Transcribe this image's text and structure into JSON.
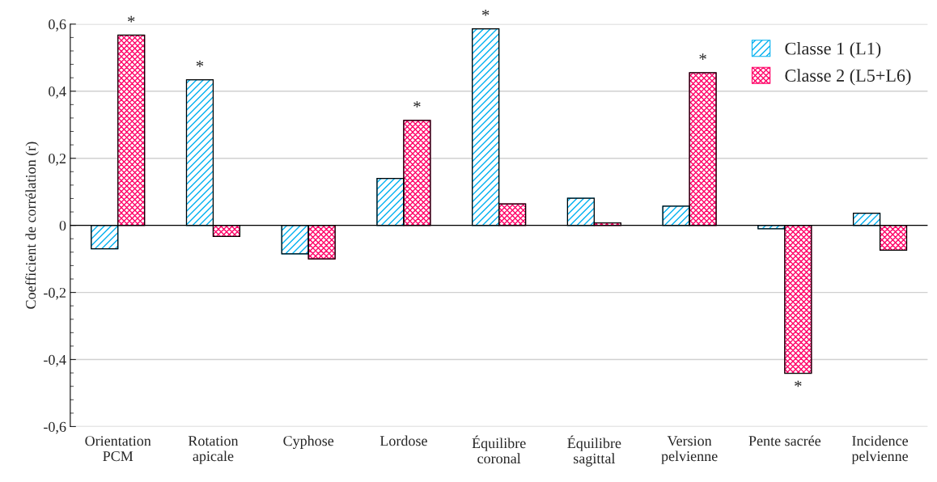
{
  "chart_data": {
    "type": "bar",
    "ylabel": "Coefficient de corrélation (r)",
    "categories": [
      "Orientation\nPCM",
      "Rotation\napicale",
      "Cyphose",
      "Lordose",
      "Équilibre\ncoronal",
      "Équilibre\nsagittal",
      "Version\npelvienne",
      "Pente sacrée",
      "Incidence\npelvienne"
    ],
    "series": [
      {
        "name": "Classe 1 (L1)",
        "color": "#00b0f0",
        "values": [
          -0.07,
          0.434,
          -0.085,
          0.14,
          0.586,
          0.081,
          0.057,
          -0.01,
          0.036
        ]
      },
      {
        "name": "Classe 2 (L5+L6)",
        "color": "#ff0066",
        "values": [
          0.567,
          -0.033,
          -0.1,
          0.313,
          0.064,
          0.007,
          0.455,
          -0.441,
          -0.074
        ]
      }
    ],
    "ylim": [
      -0.6,
      0.6
    ],
    "yticks": [
      {
        "value": -0.6,
        "label": "-0,6"
      },
      {
        "value": -0.4,
        "label": "-0,4"
      },
      {
        "value": -0.2,
        "label": "-0,2"
      },
      {
        "value": 0,
        "label": "0"
      },
      {
        "value": 0.2,
        "label": "0,2"
      },
      {
        "value": 0.4,
        "label": "0,4"
      },
      {
        "value": 0.6,
        "label": "0,6"
      }
    ],
    "grid": "y",
    "legend": "top right",
    "annotations": [
      {
        "text": "*",
        "x": "Orientation\nPCM",
        "y": 0.567
      },
      {
        "text": "*",
        "x": "Rotation\napicale",
        "y": 0.434
      },
      {
        "text": "*",
        "x": "Lordose",
        "y": 0.313
      },
      {
        "text": "*",
        "x": "Équilibre\ncoronal",
        "y": 0.586
      },
      {
        "text": "*",
        "x": "Version\npelvienne",
        "y": 0.455
      },
      {
        "text": "*",
        "x": "Pente sacrée",
        "y": -0.441
      }
    ]
  }
}
